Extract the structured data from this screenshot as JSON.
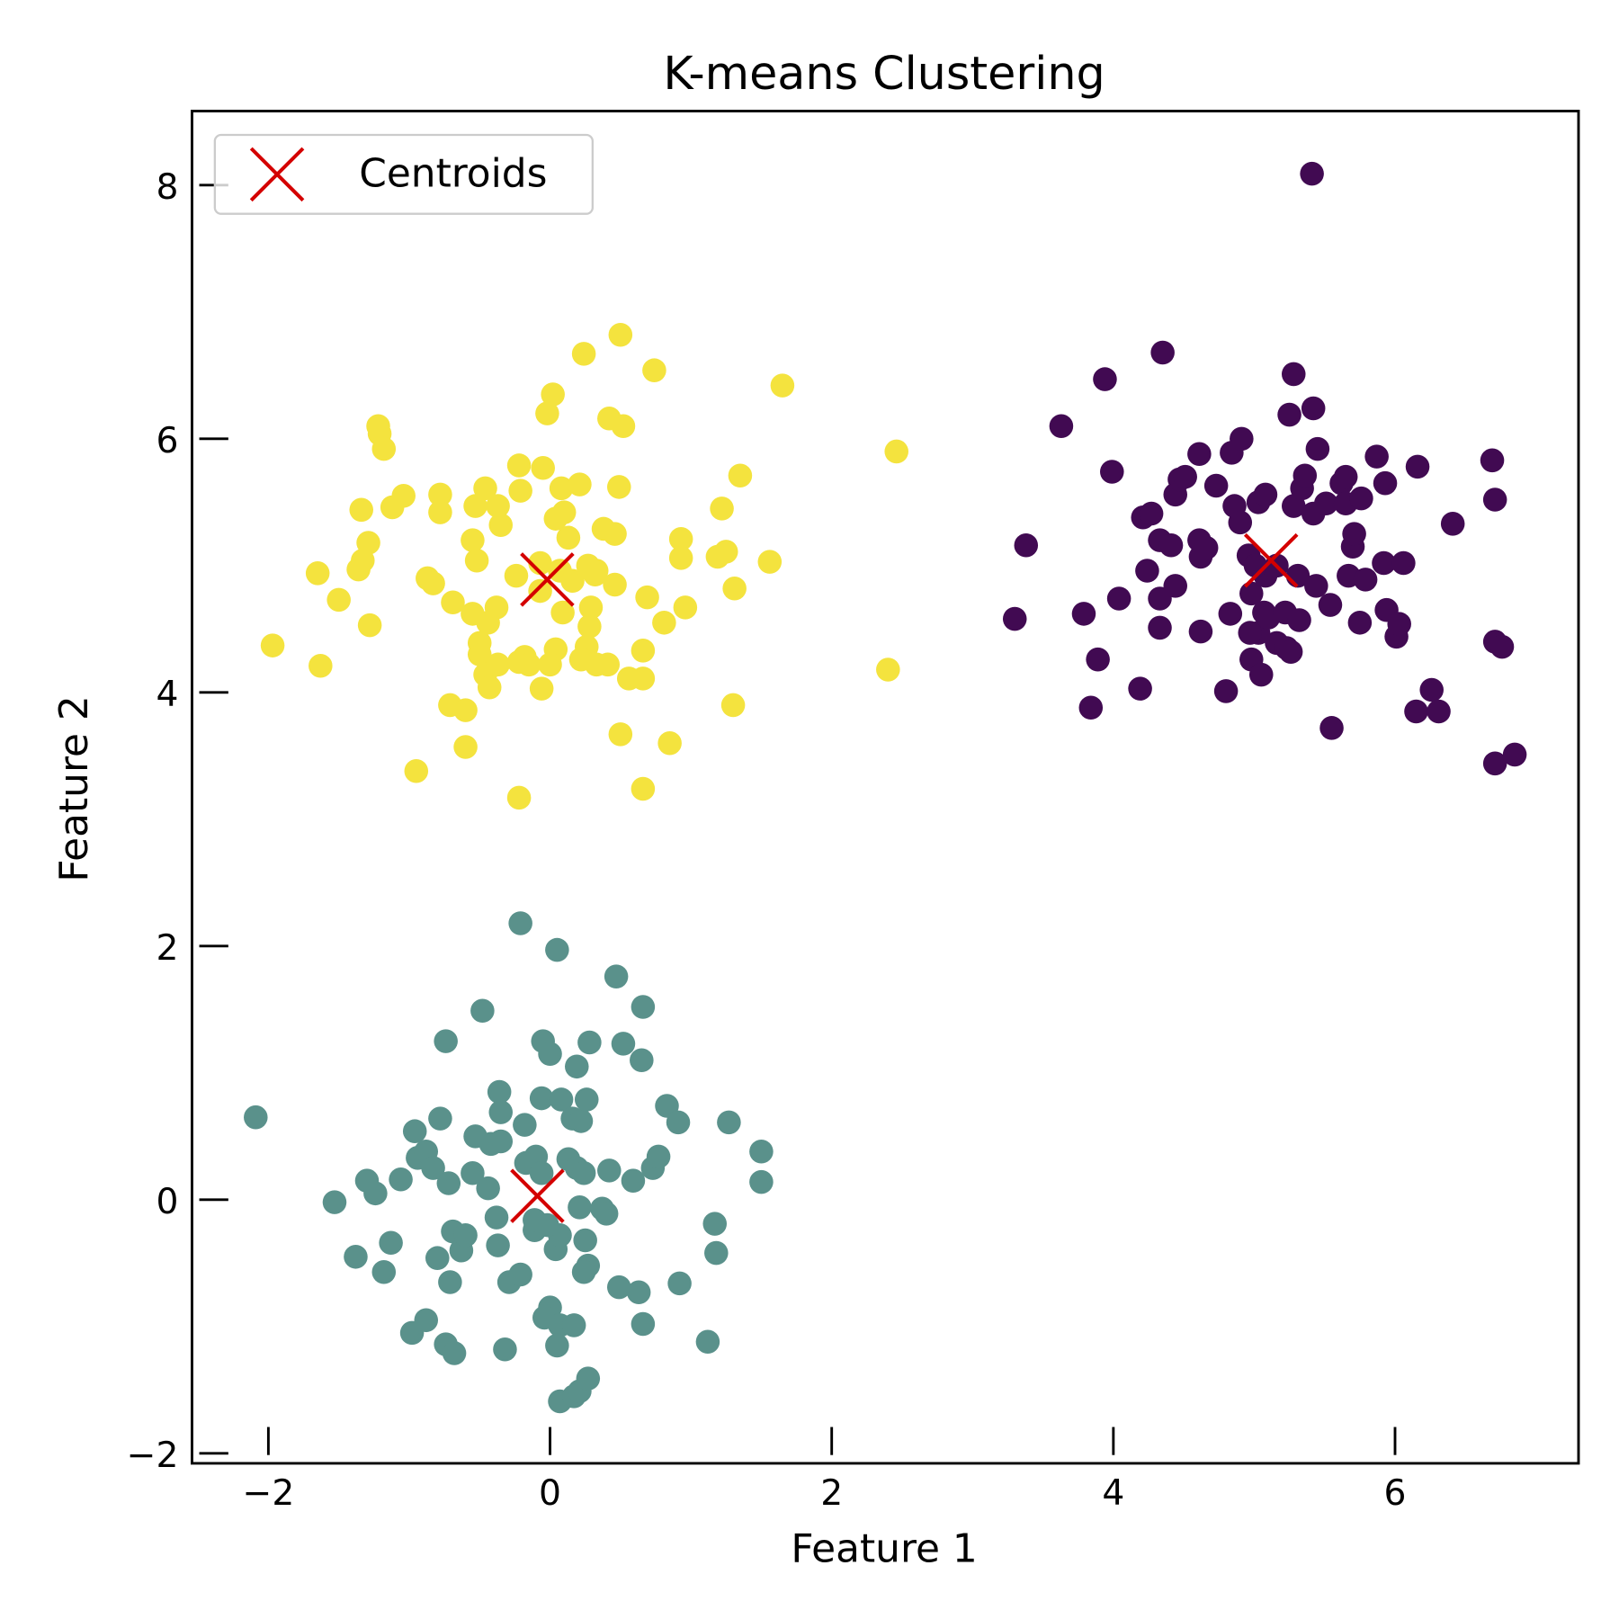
{
  "chart_data": {
    "type": "scatter",
    "title": "K-means Clustering",
    "xlabel": "Feature 1",
    "ylabel": "Feature 2",
    "xlim": [
      -2.55,
      7.3
    ],
    "ylim": [
      -2.06,
      8.57
    ],
    "xticks": [
      -2,
      0,
      2,
      4,
      6
    ],
    "yticks": [
      -2,
      0,
      2,
      4,
      6,
      8
    ],
    "xtick_labels": [
      "−2",
      "0",
      "2",
      "4",
      "6"
    ],
    "ytick_labels": [
      "−2",
      "0",
      "2",
      "4",
      "6",
      "8"
    ],
    "grid": false,
    "legend": {
      "placement": "top-left",
      "entries": [
        "Centroids"
      ]
    },
    "colors": {
      "cluster_0": "#410a52",
      "cluster_1": "#5a918b",
      "cluster_2": "#f4e33e",
      "centroid": "#d40000"
    },
    "clusters": [
      {
        "color": "#410a52",
        "points": [
          [
            3.3,
            4.58
          ],
          [
            3.38,
            5.16
          ],
          [
            3.63,
            6.1
          ],
          [
            3.79,
            4.62
          ],
          [
            3.84,
            3.88
          ],
          [
            3.89,
            4.26
          ],
          [
            3.94,
            6.47
          ],
          [
            3.99,
            5.74
          ],
          [
            4.04,
            4.74
          ],
          [
            4.19,
            4.03
          ],
          [
            4.21,
            5.38
          ],
          [
            4.27,
            5.41
          ],
          [
            4.24,
            4.96
          ],
          [
            4.33,
            4.51
          ],
          [
            4.33,
            5.2
          ],
          [
            4.33,
            4.74
          ],
          [
            4.35,
            6.68
          ],
          [
            4.41,
            5.16
          ],
          [
            4.44,
            4.84
          ],
          [
            4.44,
            5.56
          ],
          [
            4.47,
            5.68
          ],
          [
            4.51,
            5.7
          ],
          [
            4.61,
            5.88
          ],
          [
            4.61,
            5.2
          ],
          [
            4.62,
            5.07
          ],
          [
            4.62,
            4.48
          ],
          [
            4.66,
            5.14
          ],
          [
            4.73,
            5.63
          ],
          [
            4.8,
            4.01
          ],
          [
            4.83,
            4.62
          ],
          [
            4.84,
            5.89
          ],
          [
            4.86,
            5.47
          ],
          [
            4.9,
            5.34
          ],
          [
            4.91,
            6.0
          ],
          [
            4.96,
            5.08
          ],
          [
            4.98,
            4.78
          ],
          [
            5.03,
            5.5
          ],
          [
            5.08,
            5.56
          ],
          [
            5.07,
            4.63
          ],
          [
            4.98,
            4.26
          ],
          [
            5.05,
            4.14
          ],
          [
            5.03,
            4.47
          ],
          [
            5.1,
            4.59
          ],
          [
            5.16,
            5.0
          ],
          [
            5.16,
            4.39
          ],
          [
            5.22,
            4.63
          ],
          [
            5.23,
            4.35
          ],
          [
            5.25,
            6.19
          ],
          [
            5.26,
            4.32
          ],
          [
            5.28,
            6.51
          ],
          [
            5.28,
            5.47
          ],
          [
            5.31,
            4.92
          ],
          [
            5.32,
            4.57
          ],
          [
            5.34,
            5.61
          ],
          [
            5.36,
            5.71
          ],
          [
            5.42,
            6.24
          ],
          [
            5.42,
            5.41
          ],
          [
            5.41,
            8.09
          ],
          [
            5.45,
            5.92
          ],
          [
            5.44,
            4.84
          ],
          [
            5.51,
            5.49
          ],
          [
            5.54,
            4.69
          ],
          [
            5.55,
            3.72
          ],
          [
            5.62,
            5.65
          ],
          [
            5.65,
            5.49
          ],
          [
            5.65,
            5.7
          ],
          [
            5.7,
            5.15
          ],
          [
            5.71,
            5.25
          ],
          [
            5.67,
            4.92
          ],
          [
            5.75,
            4.55
          ],
          [
            5.76,
            5.53
          ],
          [
            5.79,
            4.89
          ],
          [
            5.87,
            5.86
          ],
          [
            5.92,
            5.02
          ],
          [
            5.93,
            5.65
          ],
          [
            5.94,
            4.65
          ],
          [
            6.01,
            4.44
          ],
          [
            6.03,
            4.54
          ],
          [
            6.06,
            5.02
          ],
          [
            6.16,
            5.78
          ],
          [
            6.15,
            3.85
          ],
          [
            6.26,
            4.02
          ],
          [
            6.31,
            3.85
          ],
          [
            6.41,
            5.33
          ],
          [
            6.69,
            5.83
          ],
          [
            6.71,
            3.44
          ],
          [
            6.71,
            5.52
          ],
          [
            6.71,
            4.4
          ],
          [
            6.76,
            4.36
          ],
          [
            6.85,
            3.51
          ],
          [
            5.08,
            4.92
          ],
          [
            5.01,
            5.0
          ],
          [
            4.97,
            4.47
          ]
        ]
      },
      {
        "color": "#5a918b",
        "points": [
          [
            -2.09,
            0.65
          ],
          [
            -1.53,
            -0.02
          ],
          [
            -1.38,
            -0.45
          ],
          [
            -1.3,
            0.15
          ],
          [
            -1.24,
            0.05
          ],
          [
            -1.18,
            -0.57
          ],
          [
            -1.13,
            -0.34
          ],
          [
            -1.06,
            0.16
          ],
          [
            -0.98,
            -1.05
          ],
          [
            -0.88,
            -0.95
          ],
          [
            -0.96,
            0.54
          ],
          [
            -0.94,
            0.33
          ],
          [
            -0.88,
            0.38
          ],
          [
            -0.83,
            0.25
          ],
          [
            -0.78,
            0.64
          ],
          [
            -0.74,
            1.25
          ],
          [
            -0.72,
            0.13
          ],
          [
            -0.71,
            -0.65
          ],
          [
            -0.74,
            -1.14
          ],
          [
            -0.68,
            -1.21
          ],
          [
            -0.8,
            -0.46
          ],
          [
            -0.69,
            -0.25
          ],
          [
            -0.63,
            -0.4
          ],
          [
            -0.6,
            -0.28
          ],
          [
            -0.55,
            0.21
          ],
          [
            -0.53,
            0.5
          ],
          [
            -0.48,
            1.49
          ],
          [
            -0.44,
            0.09
          ],
          [
            -0.42,
            0.44
          ],
          [
            -0.36,
            0.85
          ],
          [
            -0.35,
            0.69
          ],
          [
            -0.35,
            0.46
          ],
          [
            -0.38,
            -0.14
          ],
          [
            -0.37,
            -0.36
          ],
          [
            -0.29,
            -0.65
          ],
          [
            -0.32,
            -1.18
          ],
          [
            -0.21,
            -0.59
          ],
          [
            -0.21,
            2.18
          ],
          [
            -0.18,
            0.59
          ],
          [
            -0.17,
            0.29
          ],
          [
            -0.1,
            0.34
          ],
          [
            -0.11,
            -0.24
          ],
          [
            -0.06,
            0.21
          ],
          [
            -0.06,
            0.8
          ],
          [
            -0.05,
            1.25
          ],
          [
            0.0,
            1.15
          ],
          [
            0.05,
            1.97
          ],
          [
            0.08,
            0.79
          ],
          [
            0.13,
            0.32
          ],
          [
            0.16,
            0.64
          ],
          [
            0.19,
            1.05
          ],
          [
            0.22,
            0.62
          ],
          [
            0.26,
            0.79
          ],
          [
            0.28,
            1.24
          ],
          [
            0.19,
            0.25
          ],
          [
            0.24,
            0.21
          ],
          [
            0.21,
            -0.06
          ],
          [
            0.25,
            -0.32
          ],
          [
            0.27,
            -0.52
          ],
          [
            0.24,
            -0.57
          ],
          [
            0.37,
            -0.07
          ],
          [
            0.4,
            -0.11
          ],
          [
            0.42,
            0.23
          ],
          [
            0.04,
            -0.39
          ],
          [
            0.07,
            -0.28
          ],
          [
            -0.02,
            -0.2
          ],
          [
            -0.11,
            -0.16
          ],
          [
            0.0,
            -0.85
          ],
          [
            -0.04,
            -0.93
          ],
          [
            0.07,
            -0.99
          ],
          [
            0.17,
            -0.99
          ],
          [
            0.05,
            -1.15
          ],
          [
            0.07,
            -1.59
          ],
          [
            0.17,
            -1.55
          ],
          [
            0.21,
            -1.51
          ],
          [
            0.27,
            -1.41
          ],
          [
            0.47,
            1.76
          ],
          [
            0.52,
            1.23
          ],
          [
            0.66,
            1.52
          ],
          [
            0.65,
            1.1
          ],
          [
            0.59,
            0.15
          ],
          [
            0.49,
            -0.69
          ],
          [
            0.63,
            -0.73
          ],
          [
            0.66,
            -0.98
          ],
          [
            0.73,
            0.25
          ],
          [
            0.77,
            0.34
          ],
          [
            0.83,
            0.74
          ],
          [
            0.91,
            0.61
          ],
          [
            0.92,
            -0.66
          ],
          [
            1.12,
            -1.12
          ],
          [
            1.17,
            -0.19
          ],
          [
            1.18,
            -0.42
          ],
          [
            1.27,
            0.61
          ],
          [
            1.5,
            0.38
          ],
          [
            1.5,
            0.14
          ]
        ]
      },
      {
        "color": "#f4e33e",
        "points": [
          [
            -1.97,
            4.37
          ],
          [
            -1.63,
            4.21
          ],
          [
            -1.65,
            4.94
          ],
          [
            -1.5,
            4.73
          ],
          [
            -1.28,
            4.53
          ],
          [
            -1.36,
            4.97
          ],
          [
            -1.33,
            5.04
          ],
          [
            -1.29,
            5.18
          ],
          [
            -1.34,
            5.44
          ],
          [
            -1.21,
            6.04
          ],
          [
            -1.22,
            6.1
          ],
          [
            -1.18,
            5.92
          ],
          [
            -1.12,
            5.46
          ],
          [
            -1.04,
            5.55
          ],
          [
            -0.78,
            5.56
          ],
          [
            -0.78,
            5.42
          ],
          [
            -0.87,
            4.9
          ],
          [
            -0.83,
            4.86
          ],
          [
            -0.69,
            4.71
          ],
          [
            -0.71,
            3.9
          ],
          [
            -0.6,
            3.86
          ],
          [
            -0.6,
            3.57
          ],
          [
            -0.95,
            3.38
          ],
          [
            -0.22,
            3.17
          ],
          [
            -0.55,
            5.2
          ],
          [
            -0.52,
            5.04
          ],
          [
            -0.53,
            5.47
          ],
          [
            -0.46,
            5.61
          ],
          [
            -0.35,
            5.32
          ],
          [
            -0.37,
            5.47
          ],
          [
            -0.22,
            5.79
          ],
          [
            -0.21,
            5.59
          ],
          [
            -0.05,
            5.77
          ],
          [
            -0.02,
            6.2
          ],
          [
            0.02,
            6.35
          ],
          [
            0.04,
            5.37
          ],
          [
            0.08,
            5.61
          ],
          [
            0.1,
            5.42
          ],
          [
            0.13,
            5.22
          ],
          [
            0.21,
            5.64
          ],
          [
            0.24,
            6.67
          ],
          [
            0.5,
            6.82
          ],
          [
            0.74,
            6.54
          ],
          [
            0.42,
            6.16
          ],
          [
            0.52,
            6.1
          ],
          [
            0.49,
            5.62
          ],
          [
            0.38,
            5.29
          ],
          [
            0.46,
            5.25
          ],
          [
            0.46,
            4.85
          ],
          [
            0.33,
            4.96
          ],
          [
            0.29,
            4.67
          ],
          [
            0.28,
            4.52
          ],
          [
            0.26,
            4.36
          ],
          [
            0.22,
            4.26
          ],
          [
            0.33,
            4.22
          ],
          [
            0.41,
            4.22
          ],
          [
            0.56,
            4.11
          ],
          [
            0.66,
            4.11
          ],
          [
            0.66,
            4.33
          ],
          [
            0.69,
            4.75
          ],
          [
            0.81,
            4.55
          ],
          [
            0.96,
            4.67
          ],
          [
            0.93,
            5.21
          ],
          [
            0.93,
            5.06
          ],
          [
            0.85,
            3.6
          ],
          [
            0.66,
            3.24
          ],
          [
            0.5,
            3.67
          ],
          [
            1.3,
            3.9
          ],
          [
            1.31,
            4.82
          ],
          [
            1.19,
            5.07
          ],
          [
            1.25,
            5.11
          ],
          [
            1.22,
            5.45
          ],
          [
            1.35,
            5.71
          ],
          [
            1.56,
            5.03
          ],
          [
            1.65,
            6.42
          ],
          [
            2.46,
            5.9
          ],
          [
            2.4,
            4.18
          ],
          [
            -0.44,
            4.55
          ],
          [
            -0.38,
            4.67
          ],
          [
            -0.5,
            4.3
          ],
          [
            -0.46,
            4.14
          ],
          [
            -0.43,
            4.04
          ],
          [
            -0.37,
            4.22
          ],
          [
            -0.22,
            4.24
          ],
          [
            -0.18,
            4.28
          ],
          [
            -0.06,
            4.03
          ],
          [
            0.04,
            4.34
          ],
          [
            0.09,
            4.63
          ],
          [
            -0.07,
            4.8
          ],
          [
            -0.07,
            5.02
          ],
          [
            0.07,
            4.96
          ],
          [
            0.16,
            4.88
          ],
          [
            0.27,
            5.0
          ],
          [
            0.32,
            4.93
          ],
          [
            -0.55,
            4.62
          ],
          [
            -0.5,
            4.39
          ],
          [
            -0.24,
            4.92
          ],
          [
            0.0,
            4.22
          ],
          [
            -0.15,
            4.22
          ]
        ]
      }
    ],
    "centroids": [
      [
        5.12,
        5.04
      ],
      [
        -0.09,
        0.03
      ],
      [
        -0.02,
        4.89
      ]
    ]
  }
}
